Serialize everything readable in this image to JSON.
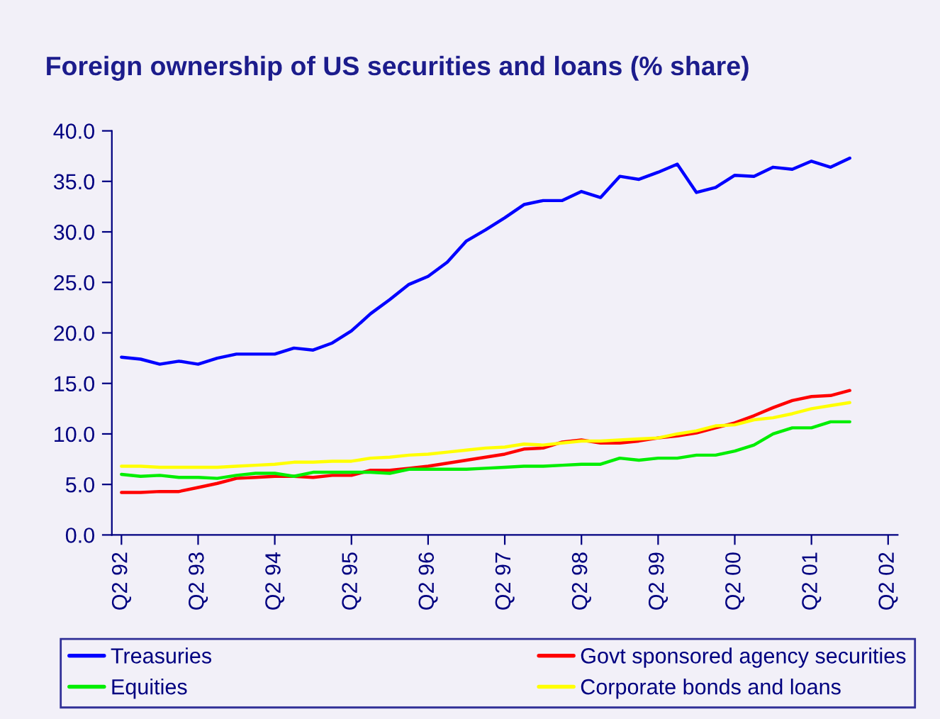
{
  "chart_data": {
    "type": "line",
    "title": "Foreign ownership of US securities and loans (% share)",
    "categories": [
      "Q2 92",
      null,
      null,
      null,
      "Q2 93",
      null,
      null,
      null,
      "Q2 94",
      null,
      null,
      null,
      "Q2 95",
      null,
      null,
      null,
      "Q2 96",
      null,
      null,
      null,
      "Q2 97",
      null,
      null,
      null,
      "Q2 98",
      null,
      null,
      null,
      "Q2 99",
      null,
      null,
      null,
      "Q2 00",
      null,
      null,
      null,
      "Q2 01",
      null,
      null,
      null,
      "Q2 02"
    ],
    "series": [
      {
        "name": "Treasuries",
        "color": "#0000ff",
        "values": [
          17.6,
          17.4,
          16.9,
          17.2,
          16.9,
          17.5,
          17.9,
          17.9,
          17.9,
          18.5,
          18.3,
          19.0,
          20.2,
          21.9,
          23.3,
          24.8,
          25.6,
          27.0,
          29.1,
          30.2,
          31.4,
          32.7,
          33.1,
          33.1,
          34.0,
          33.4,
          35.5,
          35.2,
          35.9,
          36.7,
          33.9,
          34.4,
          35.6,
          35.5,
          36.4,
          36.2,
          37.0,
          36.4,
          37.3,
          null,
          null
        ]
      },
      {
        "name": "Govt sponsored agency securities",
        "color": "#ff0000",
        "values": [
          4.2,
          4.2,
          4.3,
          4.3,
          4.7,
          5.1,
          5.6,
          5.7,
          5.8,
          5.8,
          5.7,
          5.9,
          5.9,
          6.4,
          6.4,
          6.6,
          6.8,
          7.1,
          7.4,
          7.7,
          8.0,
          8.5,
          8.6,
          9.2,
          9.4,
          9.1,
          9.1,
          9.3,
          9.6,
          9.8,
          10.1,
          10.6,
          11.1,
          11.8,
          12.6,
          13.3,
          13.7,
          13.8,
          14.3,
          null,
          null
        ]
      },
      {
        "name": "Equities",
        "color": "#00ee00",
        "values": [
          6.0,
          5.8,
          5.9,
          5.7,
          5.7,
          5.6,
          5.9,
          6.1,
          6.1,
          5.8,
          6.2,
          6.2,
          6.2,
          6.2,
          6.1,
          6.5,
          6.5,
          6.5,
          6.5,
          6.6,
          6.7,
          6.8,
          6.8,
          6.9,
          7.0,
          7.0,
          7.6,
          7.4,
          7.6,
          7.6,
          7.9,
          7.9,
          8.3,
          8.9,
          10.0,
          10.6,
          10.6,
          11.2,
          11.2,
          null,
          null
        ]
      },
      {
        "name": "Corporate bonds and loans",
        "color": "#ffff00",
        "values": [
          6.8,
          6.8,
          6.7,
          6.7,
          6.7,
          6.7,
          6.8,
          6.9,
          7.0,
          7.2,
          7.2,
          7.3,
          7.3,
          7.6,
          7.7,
          7.9,
          8.0,
          8.2,
          8.4,
          8.6,
          8.7,
          9.0,
          8.9,
          9.1,
          9.3,
          9.3,
          9.4,
          9.5,
          9.6,
          10.0,
          10.3,
          10.8,
          10.9,
          11.4,
          11.6,
          12.0,
          12.5,
          12.8,
          13.1,
          null,
          null
        ]
      }
    ],
    "ylim": [
      0,
      40
    ],
    "yticks": [
      {
        "value": 0,
        "label": "0.0"
      },
      {
        "value": 5,
        "label": "5.0"
      },
      {
        "value": 10,
        "label": "10.0"
      },
      {
        "value": 15,
        "label": "15.0"
      },
      {
        "value": 20,
        "label": "20.0"
      },
      {
        "value": 25,
        "label": "25.0"
      },
      {
        "value": 30,
        "label": "30.0"
      },
      {
        "value": 35,
        "label": "35.0"
      },
      {
        "value": 40,
        "label": "40.0"
      }
    ],
    "grid": false,
    "legend": "bottom",
    "marker": "none",
    "line_style": "solid"
  }
}
